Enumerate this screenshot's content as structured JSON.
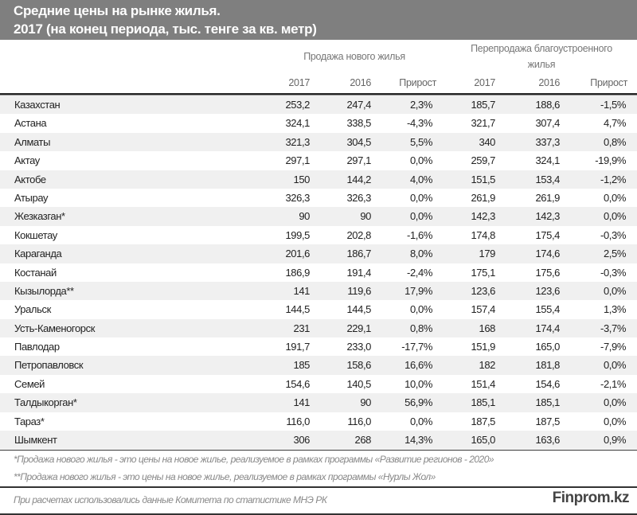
{
  "title": {
    "line1": "Средние цены на рынке жилья.",
    "line2": "2017 (на конец периода, тыс. тенге за кв. метр)"
  },
  "groups": {
    "new": "Продажа нового жилья",
    "resale_line1": "Перепродажа благоустроенного",
    "resale_line2": "жилья"
  },
  "columns": [
    "2017",
    "2016",
    "Прирост",
    "2017",
    "2016",
    "Прирост"
  ],
  "rows": [
    [
      "Казахстан",
      "253,2",
      "247,4",
      "2,3%",
      "185,7",
      "188,6",
      "-1,5%"
    ],
    [
      "Астана",
      "324,1",
      "338,5",
      "-4,3%",
      "321,7",
      "307,4",
      "4,7%"
    ],
    [
      "Алматы",
      "321,3",
      "304,5",
      "5,5%",
      "340",
      "337,3",
      "0,8%"
    ],
    [
      "Актау",
      "297,1",
      "297,1",
      "0,0%",
      "259,7",
      "324,1",
      "-19,9%"
    ],
    [
      "Актобе",
      "150",
      "144,2",
      "4,0%",
      "151,5",
      "153,4",
      "-1,2%"
    ],
    [
      "Атырау",
      "326,3",
      "326,3",
      "0,0%",
      "261,9",
      "261,9",
      "0,0%"
    ],
    [
      "Жезказган*",
      "90",
      "90",
      "0,0%",
      "142,3",
      "142,3",
      "0,0%"
    ],
    [
      "Кокшетау",
      "199,5",
      "202,8",
      "-1,6%",
      "174,8",
      "175,4",
      "-0,3%"
    ],
    [
      "Караганда",
      "201,6",
      "186,7",
      "8,0%",
      "179",
      "174,6",
      "2,5%"
    ],
    [
      "Костанай",
      "186,9",
      "191,4",
      "-2,4%",
      "175,1",
      "175,6",
      "-0,3%"
    ],
    [
      "Кызылорда**",
      "141",
      "119,6",
      "17,9%",
      "123,6",
      "123,6",
      "0,0%"
    ],
    [
      "Уральск",
      "144,5",
      "144,5",
      "0,0%",
      "157,4",
      "155,4",
      "1,3%"
    ],
    [
      "Усть-Каменогорск",
      "231",
      "229,1",
      "0,8%",
      "168",
      "174,4",
      "-3,7%"
    ],
    [
      "Павлодар",
      "191,7",
      "233,0",
      "-17,7%",
      "151,9",
      "165,0",
      "-7,9%"
    ],
    [
      "Петропавловск",
      "185",
      "158,6",
      "16,6%",
      "182",
      "181,8",
      "0,0%"
    ],
    [
      "Семей",
      "154,6",
      "140,5",
      "10,0%",
      "151,4",
      "154,6",
      "-2,1%"
    ],
    [
      "Талдыкорган*",
      "141",
      "90",
      "56,9%",
      "185,1",
      "185,1",
      "0,0%"
    ],
    [
      "Тараз*",
      "116,0",
      "116,0",
      "0,0%",
      "187,5",
      "187,5",
      "0,0%"
    ],
    [
      "Шымкент",
      "306",
      "268",
      "14,3%",
      "165,0",
      "163,6",
      "0,9%"
    ]
  ],
  "footnotes": [
    "*Продажа нового жилья - это цены на новое жилье, реализуемое в рамках программы «Развитие регионов - 2020»",
    "**Продажа нового жилья - это цены на новое жилье, реализуемое в рамках программы «Нурлы Жол»"
  ],
  "source": "При расчетах использовались данные Комитета по статистике МНЭ РК",
  "brand": "Finprom.kz"
}
